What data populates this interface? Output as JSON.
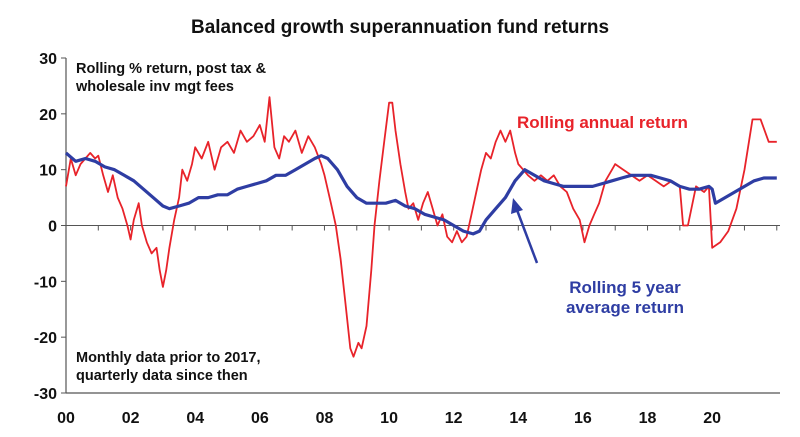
{
  "title": "Balanced growth superannuation fund returns",
  "notes": {
    "top_line1": "Rolling % return, post tax &",
    "top_line2": "wholesale inv mgt fees",
    "bottom_line1": "Monthly data prior to 2017,",
    "bottom_line2": "quarterly data since then"
  },
  "colors": {
    "annual": "#e8232a",
    "five_year": "#2e3da3",
    "axis": "#555555"
  },
  "chart_data": {
    "type": "line",
    "title": "Balanced growth superannuation fund returns",
    "xlabel": "",
    "ylabel": "",
    "xlim": [
      2000,
      2022.1
    ],
    "ylim": [
      -30,
      30
    ],
    "x_ticks": [
      {
        "value": 2000,
        "label": "00"
      },
      {
        "value": 2002,
        "label": "02"
      },
      {
        "value": 2004,
        "label": "04"
      },
      {
        "value": 2006,
        "label": "06"
      },
      {
        "value": 2008,
        "label": "08"
      },
      {
        "value": 2010,
        "label": "10"
      },
      {
        "value": 2012,
        "label": "12"
      },
      {
        "value": 2014,
        "label": "14"
      },
      {
        "value": 2016,
        "label": "16"
      },
      {
        "value": 2018,
        "label": "18"
      },
      {
        "value": 2020,
        "label": "20"
      }
    ],
    "y_ticks": [
      {
        "value": 30,
        "label": "30"
      },
      {
        "value": 20,
        "label": "20"
      },
      {
        "value": 10,
        "label": "10"
      },
      {
        "value": 0,
        "label": "0"
      },
      {
        "value": -10,
        "label": "-10"
      },
      {
        "value": -20,
        "label": "-20"
      },
      {
        "value": -30,
        "label": "-30"
      }
    ],
    "grid": false,
    "series": [
      {
        "name": "Rolling annual return",
        "values": [
          [
            2000.0,
            7
          ],
          [
            2000.15,
            12
          ],
          [
            2000.3,
            9
          ],
          [
            2000.45,
            11
          ],
          [
            2000.6,
            12
          ],
          [
            2000.75,
            13
          ],
          [
            2000.9,
            12
          ],
          [
            2001.0,
            12.5
          ],
          [
            2001.15,
            9
          ],
          [
            2001.3,
            6
          ],
          [
            2001.45,
            9
          ],
          [
            2001.6,
            5
          ],
          [
            2001.75,
            3
          ],
          [
            2001.9,
            0
          ],
          [
            2002.0,
            -2.5
          ],
          [
            2002.1,
            1
          ],
          [
            2002.25,
            4
          ],
          [
            2002.35,
            0
          ],
          [
            2002.5,
            -3
          ],
          [
            2002.65,
            -5
          ],
          [
            2002.8,
            -4
          ],
          [
            2002.9,
            -8
          ],
          [
            2003.0,
            -11
          ],
          [
            2003.1,
            -8
          ],
          [
            2003.2,
            -4
          ],
          [
            2003.35,
            1
          ],
          [
            2003.5,
            5
          ],
          [
            2003.6,
            10
          ],
          [
            2003.75,
            8
          ],
          [
            2003.9,
            11
          ],
          [
            2004.0,
            14
          ],
          [
            2004.2,
            12
          ],
          [
            2004.4,
            15
          ],
          [
            2004.6,
            10
          ],
          [
            2004.8,
            14
          ],
          [
            2005.0,
            15
          ],
          [
            2005.2,
            13
          ],
          [
            2005.4,
            17
          ],
          [
            2005.6,
            15
          ],
          [
            2005.8,
            16
          ],
          [
            2006.0,
            18
          ],
          [
            2006.15,
            15
          ],
          [
            2006.3,
            23
          ],
          [
            2006.45,
            14
          ],
          [
            2006.6,
            12
          ],
          [
            2006.75,
            16
          ],
          [
            2006.9,
            15
          ],
          [
            2007.1,
            17
          ],
          [
            2007.3,
            13
          ],
          [
            2007.5,
            16
          ],
          [
            2007.7,
            14
          ],
          [
            2007.9,
            11
          ],
          [
            2008.0,
            9
          ],
          [
            2008.2,
            4
          ],
          [
            2008.35,
            0
          ],
          [
            2008.5,
            -6
          ],
          [
            2008.65,
            -14
          ],
          [
            2008.8,
            -22
          ],
          [
            2008.9,
            -23.5
          ],
          [
            2009.05,
            -21
          ],
          [
            2009.15,
            -22
          ],
          [
            2009.3,
            -18
          ],
          [
            2009.45,
            -8
          ],
          [
            2009.55,
            0
          ],
          [
            2009.7,
            8
          ],
          [
            2009.85,
            15
          ],
          [
            2010.0,
            22
          ],
          [
            2010.1,
            22
          ],
          [
            2010.2,
            17
          ],
          [
            2010.35,
            11
          ],
          [
            2010.5,
            6
          ],
          [
            2010.6,
            3
          ],
          [
            2010.75,
            4
          ],
          [
            2010.9,
            1
          ],
          [
            2011.05,
            4
          ],
          [
            2011.2,
            6
          ],
          [
            2011.35,
            3
          ],
          [
            2011.5,
            0
          ],
          [
            2011.65,
            2
          ],
          [
            2011.8,
            -2
          ],
          [
            2011.95,
            -3
          ],
          [
            2012.1,
            -1
          ],
          [
            2012.25,
            -3
          ],
          [
            2012.4,
            -2
          ],
          [
            2012.55,
            2
          ],
          [
            2012.7,
            6
          ],
          [
            2012.85,
            10
          ],
          [
            2013.0,
            13
          ],
          [
            2013.15,
            12
          ],
          [
            2013.3,
            15
          ],
          [
            2013.45,
            17
          ],
          [
            2013.6,
            15
          ],
          [
            2013.75,
            17
          ],
          [
            2013.9,
            13
          ],
          [
            2014.0,
            11
          ],
          [
            2014.15,
            10
          ],
          [
            2014.3,
            9
          ],
          [
            2014.5,
            8
          ],
          [
            2014.7,
            9
          ],
          [
            2014.9,
            8
          ],
          [
            2015.1,
            9
          ],
          [
            2015.3,
            7
          ],
          [
            2015.5,
            6
          ],
          [
            2015.7,
            3
          ],
          [
            2015.9,
            1
          ],
          [
            2016.05,
            -3
          ],
          [
            2016.2,
            0
          ],
          [
            2016.35,
            2
          ],
          [
            2016.5,
            4
          ],
          [
            2016.7,
            8
          ],
          [
            2016.9,
            10
          ],
          [
            2017.0,
            11
          ],
          [
            2017.25,
            10
          ],
          [
            2017.5,
            9
          ],
          [
            2017.75,
            8
          ],
          [
            2018.0,
            9
          ],
          [
            2018.25,
            8
          ],
          [
            2018.5,
            7
          ],
          [
            2018.75,
            8
          ],
          [
            2019.0,
            7
          ],
          [
            2019.1,
            0
          ],
          [
            2019.25,
            0
          ],
          [
            2019.5,
            7
          ],
          [
            2019.75,
            6
          ],
          [
            2019.9,
            7
          ],
          [
            2020.0,
            -4
          ],
          [
            2020.25,
            -3
          ],
          [
            2020.5,
            -1
          ],
          [
            2020.75,
            3
          ],
          [
            2021.0,
            10
          ],
          [
            2021.25,
            19
          ],
          [
            2021.5,
            19
          ],
          [
            2021.75,
            15
          ],
          [
            2022.0,
            15
          ]
        ]
      },
      {
        "name": "Rolling 5 year average return",
        "values": [
          [
            2000.0,
            13
          ],
          [
            2000.3,
            11.5
          ],
          [
            2000.6,
            12
          ],
          [
            2000.9,
            11.5
          ],
          [
            2001.2,
            10.5
          ],
          [
            2001.5,
            10
          ],
          [
            2001.8,
            9
          ],
          [
            2002.1,
            8
          ],
          [
            2002.4,
            6.5
          ],
          [
            2002.7,
            5
          ],
          [
            2003.0,
            3.5
          ],
          [
            2003.2,
            3
          ],
          [
            2003.5,
            3.5
          ],
          [
            2003.8,
            4
          ],
          [
            2004.1,
            5
          ],
          [
            2004.4,
            5
          ],
          [
            2004.7,
            5.5
          ],
          [
            2005.0,
            5.5
          ],
          [
            2005.3,
            6.5
          ],
          [
            2005.6,
            7
          ],
          [
            2005.9,
            7.5
          ],
          [
            2006.2,
            8
          ],
          [
            2006.5,
            9
          ],
          [
            2006.8,
            9
          ],
          [
            2007.1,
            10
          ],
          [
            2007.4,
            11
          ],
          [
            2007.7,
            12
          ],
          [
            2007.9,
            12.5
          ],
          [
            2008.1,
            12
          ],
          [
            2008.4,
            10
          ],
          [
            2008.7,
            7
          ],
          [
            2009.0,
            5
          ],
          [
            2009.3,
            4
          ],
          [
            2009.6,
            4
          ],
          [
            2009.9,
            4
          ],
          [
            2010.2,
            4.5
          ],
          [
            2010.5,
            3.5
          ],
          [
            2010.8,
            3
          ],
          [
            2011.1,
            2
          ],
          [
            2011.4,
            1.5
          ],
          [
            2011.7,
            1
          ],
          [
            2012.0,
            0
          ],
          [
            2012.3,
            -1
          ],
          [
            2012.6,
            -1.5
          ],
          [
            2012.8,
            -1
          ],
          [
            2013.0,
            1
          ],
          [
            2013.3,
            3
          ],
          [
            2013.6,
            5
          ],
          [
            2013.9,
            8
          ],
          [
            2014.2,
            10
          ],
          [
            2014.5,
            9
          ],
          [
            2014.8,
            8
          ],
          [
            2015.1,
            7.5
          ],
          [
            2015.4,
            7
          ],
          [
            2015.7,
            7
          ],
          [
            2016.0,
            7
          ],
          [
            2016.3,
            7
          ],
          [
            2016.6,
            7.5
          ],
          [
            2016.9,
            8
          ],
          [
            2017.2,
            8.5
          ],
          [
            2017.5,
            9
          ],
          [
            2017.8,
            9
          ],
          [
            2018.1,
            9
          ],
          [
            2018.4,
            8.5
          ],
          [
            2018.7,
            8
          ],
          [
            2019.0,
            7
          ],
          [
            2019.3,
            6.5
          ],
          [
            2019.6,
            6.5
          ],
          [
            2019.9,
            7
          ],
          [
            2020.0,
            6.5
          ],
          [
            2020.1,
            4
          ],
          [
            2020.4,
            5
          ],
          [
            2020.7,
            6
          ],
          [
            2021.0,
            7
          ],
          [
            2021.3,
            8
          ],
          [
            2021.6,
            8.5
          ],
          [
            2021.9,
            8.5
          ],
          [
            2022.0,
            8.5
          ]
        ]
      }
    ],
    "annotations": [
      {
        "text": "Rolling annual return"
      },
      {
        "text_line1": "Rolling 5 year",
        "text_line2": "average return"
      }
    ]
  }
}
